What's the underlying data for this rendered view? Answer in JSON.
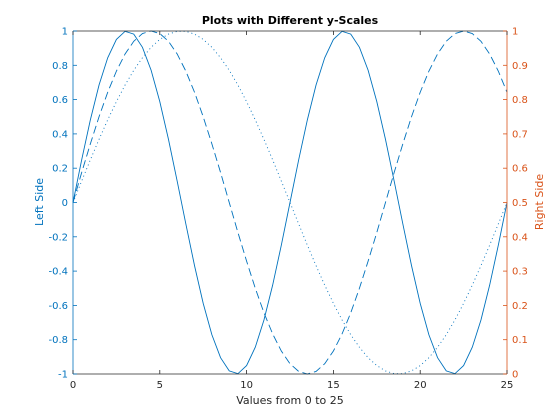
{
  "chart_data": {
    "type": "line",
    "title": "Plots with Different y-Scales",
    "xlabel": "Values from 0 to 25",
    "ylabel_left": "Left Side",
    "ylabel_right": "Right Side",
    "xlim": [
      0,
      25
    ],
    "ylim_left": [
      -1,
      1
    ],
    "ylim_right": [
      0,
      1
    ],
    "x_ticks": [
      0,
      5,
      10,
      15,
      20,
      25
    ],
    "x_tick_labels": [
      "0",
      "5",
      "10",
      "15",
      "20",
      "25"
    ],
    "y_left_ticks": [
      -1,
      -0.8,
      -0.6,
      -0.4,
      -0.2,
      0,
      0.2,
      0.4,
      0.6,
      0.8,
      1
    ],
    "y_left_tick_labels": [
      "-1",
      "-0.8",
      "-0.6",
      "-0.4",
      "-0.2",
      "0",
      "0.2",
      "0.4",
      "0.6",
      "0.8",
      "1"
    ],
    "y_right_ticks": [
      0,
      0.1,
      0.2,
      0.3,
      0.4,
      0.5,
      0.6,
      0.7,
      0.8,
      0.9,
      1
    ],
    "y_right_tick_labels": [
      "0",
      "0.1",
      "0.2",
      "0.3",
      "0.4",
      "0.5",
      "0.6",
      "0.7",
      "0.8",
      "0.9",
      "1"
    ],
    "grid": false,
    "left_axis_color": "#0072BD",
    "right_axis_color": "#D95319",
    "line_color": "#0072BD",
    "series": [
      {
        "style": "solid",
        "axis": "left",
        "x": [
          0,
          0.5,
          1,
          1.5,
          2,
          2.5,
          3,
          3.5,
          4,
          4.5,
          5,
          5.5,
          6,
          6.5,
          7,
          7.5,
          8,
          8.5,
          9,
          9.5,
          10,
          10.5,
          11,
          11.5,
          12,
          12.5,
          13,
          13.5,
          14,
          14.5,
          15,
          15.5,
          16,
          16.5,
          17,
          17.5,
          18,
          18.5,
          19,
          19.5,
          20,
          20.5,
          21,
          21.5,
          22,
          22.5,
          23,
          23.5,
          24,
          24.5,
          25
        ],
        "y": [
          0,
          0.249,
          0.482,
          0.685,
          0.844,
          0.951,
          0.998,
          0.982,
          0.905,
          0.771,
          0.588,
          0.368,
          0.125,
          -0.125,
          -0.368,
          -0.588,
          -0.771,
          -0.905,
          -0.982,
          -0.998,
          -0.951,
          -0.844,
          -0.685,
          -0.482,
          -0.249,
          0,
          0.249,
          0.482,
          0.685,
          0.844,
          0.951,
          0.998,
          0.982,
          0.905,
          0.771,
          0.588,
          0.368,
          0.125,
          -0.125,
          -0.368,
          -0.588,
          -0.771,
          -0.905,
          -0.982,
          -0.998,
          -0.951,
          -0.844,
          -0.685,
          -0.482,
          -0.249,
          0
        ]
      },
      {
        "style": "dashed",
        "axis": "left",
        "x": [
          0,
          0.5,
          1,
          1.5,
          2,
          2.5,
          3,
          3.5,
          4,
          4.5,
          5,
          5.5,
          6,
          6.5,
          7,
          7.5,
          8,
          8.5,
          9,
          9.5,
          10,
          10.5,
          11,
          11.5,
          12,
          12.5,
          13,
          13.5,
          14,
          14.5,
          15,
          15.5,
          16,
          16.5,
          17,
          17.5,
          18,
          18.5,
          19,
          19.5,
          20,
          20.5,
          21,
          21.5,
          22,
          22.5,
          23,
          23.5,
          24,
          24.5,
          25
        ],
        "y": [
          0,
          0.175,
          0.342,
          0.5,
          0.643,
          0.766,
          0.866,
          0.94,
          0.985,
          1,
          0.985,
          0.94,
          0.866,
          0.766,
          0.643,
          0.5,
          0.342,
          0.175,
          0,
          -0.175,
          -0.342,
          -0.5,
          -0.643,
          -0.766,
          -0.866,
          -0.94,
          -0.985,
          -1,
          -0.985,
          -0.94,
          -0.866,
          -0.766,
          -0.643,
          -0.5,
          -0.342,
          -0.175,
          0,
          0.175,
          0.342,
          0.5,
          0.643,
          0.766,
          0.866,
          0.94,
          0.985,
          1,
          0.985,
          0.94,
          0.866,
          0.766,
          0.643
        ]
      },
      {
        "style": "dotted",
        "axis": "left",
        "x": [
          0,
          0.5,
          1,
          1.5,
          2,
          2.5,
          3,
          3.5,
          4,
          4.5,
          5,
          5.5,
          6,
          6.5,
          7,
          7.5,
          8,
          8.5,
          9,
          9.5,
          10,
          10.5,
          11,
          11.5,
          12,
          12.5,
          13,
          13.5,
          14,
          14.5,
          15,
          15.5,
          16,
          16.5,
          17,
          17.5,
          18,
          18.5,
          19,
          19.5,
          20,
          20.5,
          21,
          21.5,
          22,
          22.5,
          23,
          23.5,
          24,
          24.5,
          25
        ],
        "y": [
          0,
          0.125,
          0.249,
          0.368,
          0.482,
          0.588,
          0.685,
          0.771,
          0.844,
          0.905,
          0.951,
          0.982,
          0.998,
          0.998,
          0.982,
          0.951,
          0.905,
          0.844,
          0.771,
          0.685,
          0.588,
          0.482,
          0.368,
          0.249,
          0.125,
          0,
          -0.125,
          -0.249,
          -0.368,
          -0.482,
          -0.588,
          -0.685,
          -0.771,
          -0.844,
          -0.905,
          -0.951,
          -0.982,
          -0.998,
          -0.998,
          -0.982,
          -0.951,
          -0.905,
          -0.844,
          -0.771,
          -0.685,
          -0.588,
          -0.482,
          -0.368,
          -0.249,
          -0.125,
          0
        ]
      }
    ]
  }
}
